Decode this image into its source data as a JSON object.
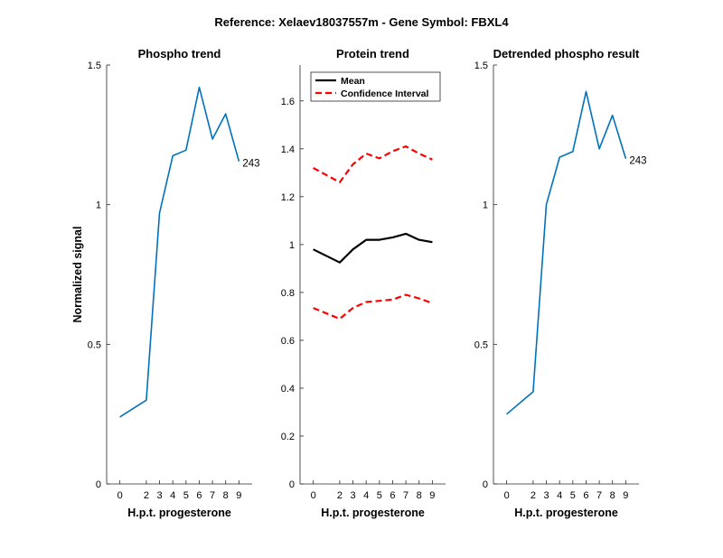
{
  "suptitle": "Reference:  Xelaev18037557m - Gene Symbol:  FBXL4",
  "chart_data": [
    {
      "type": "line",
      "title": "Phospho trend",
      "xlabel": "H.p.t. progesterone",
      "ylabel": "Normalized signal",
      "categories": [
        "0",
        "2",
        "3",
        "4",
        "5",
        "6",
        "7",
        "8",
        "9"
      ],
      "ylim": [
        0,
        1.5
      ],
      "yticks": [
        "0",
        "0.5",
        "1",
        "1.5"
      ],
      "series": [
        {
          "values": [
            0.24,
            0.3,
            0.97,
            1.175,
            1.195,
            1.42,
            1.235,
            1.325,
            1.155
          ],
          "color": "#0072BD",
          "dash": ""
        }
      ],
      "end_label": "243"
    },
    {
      "type": "line",
      "title": "Protein trend",
      "xlabel": "H.p.t. progesterone",
      "categories": [
        "0",
        "2",
        "3",
        "4",
        "5",
        "6",
        "7",
        "8",
        "9"
      ],
      "ylim": [
        0,
        1.75
      ],
      "yticks": [
        "0",
        "0.2",
        "0.4",
        "0.6",
        "0.8",
        "1",
        "1.2",
        "1.4",
        "1.6"
      ],
      "legend": {
        "placement": "top-left",
        "entries": [
          "Mean",
          "Confidence Interval"
        ]
      },
      "series": [
        {
          "name": "Mean",
          "values": [
            0.98,
            0.925,
            0.98,
            1.02,
            1.02,
            1.03,
            1.045,
            1.02,
            1.01
          ],
          "color": "#000000",
          "dash": ""
        },
        {
          "name": "Confidence Interval",
          "values": [
            1.32,
            1.26,
            1.335,
            1.38,
            1.36,
            1.39,
            1.41,
            1.38,
            1.355
          ],
          "color": "#FF0000",
          "dash": "7,4"
        },
        {
          "values": [
            0.735,
            0.69,
            0.735,
            0.76,
            0.765,
            0.77,
            0.79,
            0.775,
            0.755
          ],
          "color": "#FF0000",
          "dash": "7,4"
        }
      ]
    },
    {
      "type": "line",
      "title": "Detrended phospho result",
      "xlabel": "H.p.t. progesterone",
      "categories": [
        "0",
        "2",
        "3",
        "4",
        "5",
        "6",
        "7",
        "8",
        "9"
      ],
      "ylim": [
        0,
        1.5
      ],
      "yticks": [
        "0",
        "0.5",
        "1",
        "1.5"
      ],
      "series": [
        {
          "values": [
            0.25,
            0.33,
            1.0,
            1.17,
            1.19,
            1.405,
            1.2,
            1.32,
            1.165
          ],
          "color": "#0072BD",
          "dash": ""
        }
      ],
      "end_label": "243"
    }
  ]
}
